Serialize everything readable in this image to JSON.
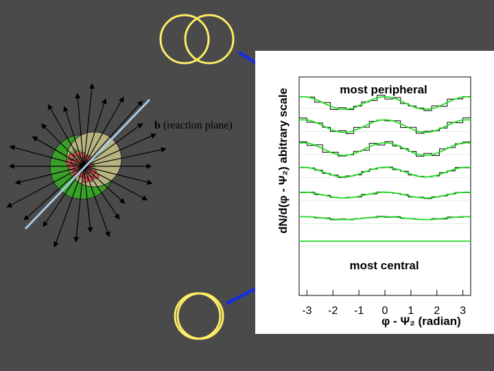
{
  "diagram": {
    "reaction_plane": {
      "symbol": "b",
      "text": " (reaction plane)"
    }
  },
  "plot": {
    "ylabel": "dN/d(φ - Ψ₂) abitrary scale",
    "xlabel": "φ - Ψ₂ (radian)",
    "label_top": "most peripheral",
    "label_bottom": "most central",
    "x_ticks": [
      "-3",
      "-2",
      "-1",
      "0",
      "1",
      "2",
      "3"
    ],
    "xlim": [
      -3.3,
      3.3
    ]
  },
  "chart_data": {
    "type": "line",
    "xlabel": "φ - Ψ₂ (radian)",
    "ylabel": "dN/d(φ - Ψ₂) abitrary scale",
    "xlim": [
      -3.3,
      3.3
    ],
    "function": "offset + amplitude*cos(2x)",
    "series": [
      {
        "offset": 0.0,
        "amplitude": 0.13
      },
      {
        "offset": -1.0,
        "amplitude": 0.13
      },
      {
        "offset": -2.0,
        "amplitude": 0.13
      },
      {
        "offset": -3.0,
        "amplitude": 0.1
      },
      {
        "offset": -4.0,
        "amplitude": 0.06
      },
      {
        "offset": -5.0,
        "amplitude": 0.03
      },
      {
        "offset": -6.0,
        "amplitude": 0.0
      }
    ],
    "curve_color": "#22dd22",
    "histogram_color": "#000000"
  },
  "colors": {
    "background": "#4a4a4a",
    "nucleus_ring": "#ffee66",
    "arrow": "#1a2fd8",
    "reaction_plane_line": "#a9cbe8",
    "green_nucleus": "#3aa02a",
    "tan_nucleus": "#b8b482",
    "participants": "#d05a5a"
  }
}
